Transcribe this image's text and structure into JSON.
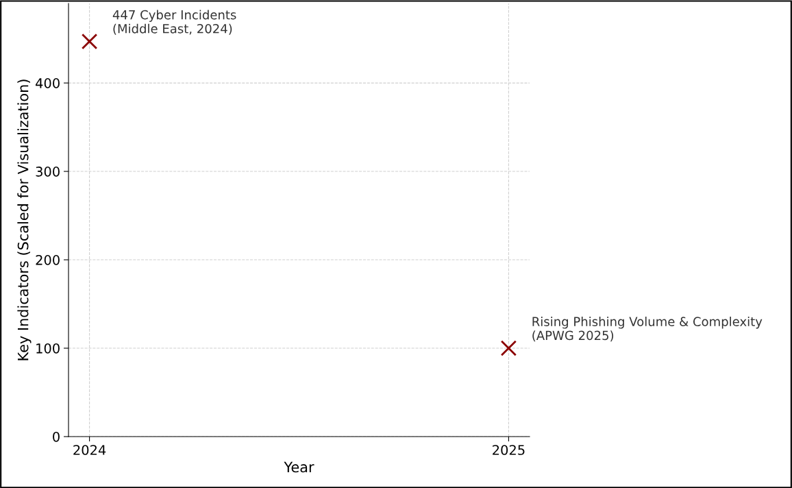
{
  "chart_data": {
    "type": "scatter",
    "xlabel": "Year",
    "ylabel": "Key Indicators (Scaled for Visualization)",
    "x": [
      2024,
      2025
    ],
    "series": [
      {
        "color": "#8b0000",
        "values": [
          447,
          100
        ]
      }
    ],
    "marker": "cross",
    "grid": true,
    "legend": false,
    "xlim": [
      2023.95,
      2025.05
    ],
    "xticks": [
      2024,
      2025
    ],
    "ylim": [
      0,
      490
    ],
    "yticks": [
      0,
      100,
      200,
      300,
      400
    ],
    "annotations": [
      {
        "text": "447 Cyber Incidents\n(Middle East, 2024)",
        "x": 2024,
        "y": 447
      },
      {
        "text": "Rising Phishing Volume & Complexity\n(APWG 2025)",
        "x": 2025,
        "y": 100
      }
    ]
  }
}
